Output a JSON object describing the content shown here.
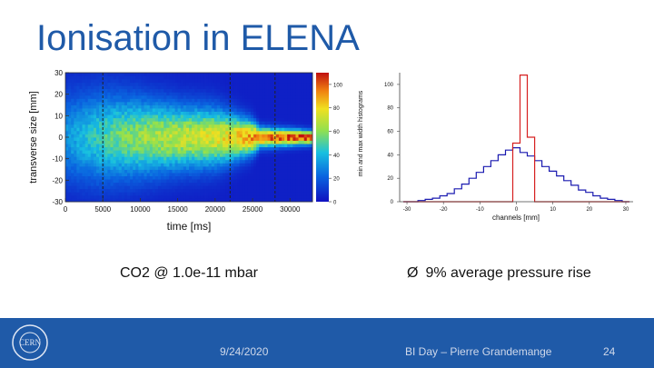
{
  "slide": {
    "title": "Ionisation in ELENA",
    "caption_left": "CO2 @ 1.0e-11 mbar",
    "caption_right": "9% average pressure rise",
    "bullet_glyph": "Ø",
    "footer_date": "9/24/2020",
    "footer_event": "BI Day – Pierre Grandemange",
    "footer_page": "24",
    "logo_text": "CERN",
    "colors": {
      "title": "#1f5aa8",
      "footer": "#1f5aa8",
      "hist_red": "#d62020",
      "hist_blue": "#1a1ab0"
    }
  },
  "chart_data": [
    {
      "type": "heatmap",
      "xlabel": "time  [ms]",
      "ylabel": "transverse size [mm]",
      "xlim": [
        0,
        33000
      ],
      "ylim": [
        -30,
        30
      ],
      "x_ticks": [
        0,
        5000,
        10000,
        15000,
        20000,
        25000,
        30000
      ],
      "y_ticks": [
        -30,
        -20,
        -10,
        0,
        10,
        20,
        30
      ],
      "x_tick_labels": [
        "0",
        "5000",
        "10000",
        "15000",
        "20000",
        "25000",
        "30000"
      ],
      "y_tick_labels": [
        "-30",
        "-20",
        "-10",
        "0",
        "10",
        "20",
        "30"
      ],
      "colorbar_range": [
        0,
        110
      ],
      "colorbar_ticks": [
        0,
        20,
        40,
        60,
        80,
        100
      ],
      "colorbar_tick_labels": [
        "0",
        "20",
        "40",
        "60",
        "80",
        "100"
      ],
      "markers_ms": [
        5000,
        22000,
        28000
      ],
      "beam_profile": [
        {
          "t": 0,
          "sigma": 14,
          "peak": 28
        },
        {
          "t": 5000,
          "sigma": 14,
          "peak": 45
        },
        {
          "t": 10000,
          "sigma": 12,
          "peak": 58
        },
        {
          "t": 15000,
          "sigma": 10,
          "peak": 65
        },
        {
          "t": 20000,
          "sigma": 9,
          "peak": 70
        },
        {
          "t": 25000,
          "sigma": 5,
          "peak": 88
        },
        {
          "t": 26000,
          "sigma": 3,
          "peak": 95
        },
        {
          "t": 33000,
          "sigma": 2,
          "peak": 105
        }
      ]
    },
    {
      "type": "line",
      "xlabel": "channels [mm]",
      "ylabel": "min and max width histograms",
      "xlim": [
        -32,
        32
      ],
      "ylim": [
        0,
        110
      ],
      "x_ticks": [
        -30,
        -20,
        -10,
        0,
        10,
        20,
        30
      ],
      "x_tick_labels": [
        "-30",
        "-20",
        "-10",
        "0",
        "10",
        "20",
        "30"
      ],
      "y_ticks": [
        0,
        20,
        40,
        60,
        80,
        100
      ],
      "y_tick_labels": [
        "0",
        "20",
        "40",
        "60",
        "80",
        "100"
      ],
      "x": [
        -30,
        -28,
        -26,
        -24,
        -22,
        -20,
        -18,
        -16,
        -14,
        -12,
        -10,
        -8,
        -6,
        -4,
        -2,
        0,
        2,
        4,
        6,
        8,
        10,
        12,
        14,
        16,
        18,
        20,
        22,
        24,
        26,
        28,
        30
      ],
      "series": [
        {
          "color": "#1a1ab0",
          "values": [
            0,
            0,
            1,
            2,
            3,
            5,
            7,
            11,
            15,
            20,
            25,
            30,
            35,
            40,
            44,
            46,
            42,
            39,
            35,
            30,
            26,
            22,
            18,
            14,
            10,
            8,
            5,
            3,
            2,
            1,
            0
          ]
        },
        {
          "color": "#d62020",
          "values": [
            0,
            0,
            0,
            0,
            0,
            0,
            0,
            0,
            0,
            0,
            0,
            0,
            0,
            0,
            0,
            50,
            108,
            55,
            0,
            0,
            0,
            0,
            0,
            0,
            0,
            0,
            0,
            0,
            0,
            0,
            0
          ]
        }
      ]
    }
  ]
}
